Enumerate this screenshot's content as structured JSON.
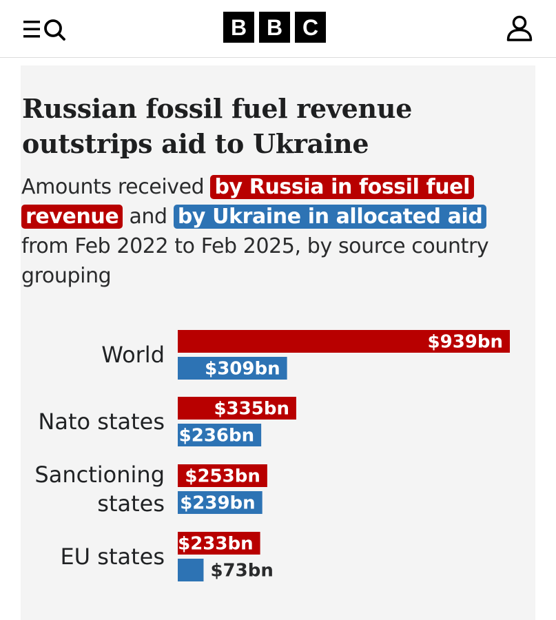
{
  "header": {
    "logo_letters": [
      "B",
      "B",
      "C"
    ]
  },
  "icons": {
    "menu": "menu-icon",
    "search": "search-icon",
    "account": "account-icon"
  },
  "colors": {
    "russia": "#b80000",
    "ukraine": "#2d73b4",
    "card_bg": "#f4f4f4"
  },
  "chart_data": {
    "type": "bar",
    "orientation": "horizontal",
    "title": "Russian fossil fuel revenue outstrips aid to Ukraine",
    "subtitle": {
      "before": "Amounts received",
      "russia_highlight": "by Russia in fossil fuel revenue",
      "middle": "and",
      "ukraine_highlight": "by Ukraine in allocated aid",
      "after": "from Feb 2022 to Feb 2025, by source country grouping"
    },
    "categories": [
      [
        "World"
      ],
      [
        "Nato states"
      ],
      [
        "Sanctioning",
        "states"
      ],
      [
        "EU states"
      ]
    ],
    "series": [
      {
        "values": [
          939,
          335,
          253,
          233
        ],
        "labels": [
          "$939bn",
          "$335bn",
          "$253bn",
          "$233bn"
        ]
      },
      {
        "values": [
          309,
          236,
          239,
          73
        ],
        "labels": [
          "$309bn",
          "$236bn",
          "$239bn",
          "$73bn"
        ]
      }
    ],
    "unit": "$bn",
    "xlim": [
      0,
      939
    ],
    "grid": false,
    "legend": "inline-in-subtitle"
  }
}
